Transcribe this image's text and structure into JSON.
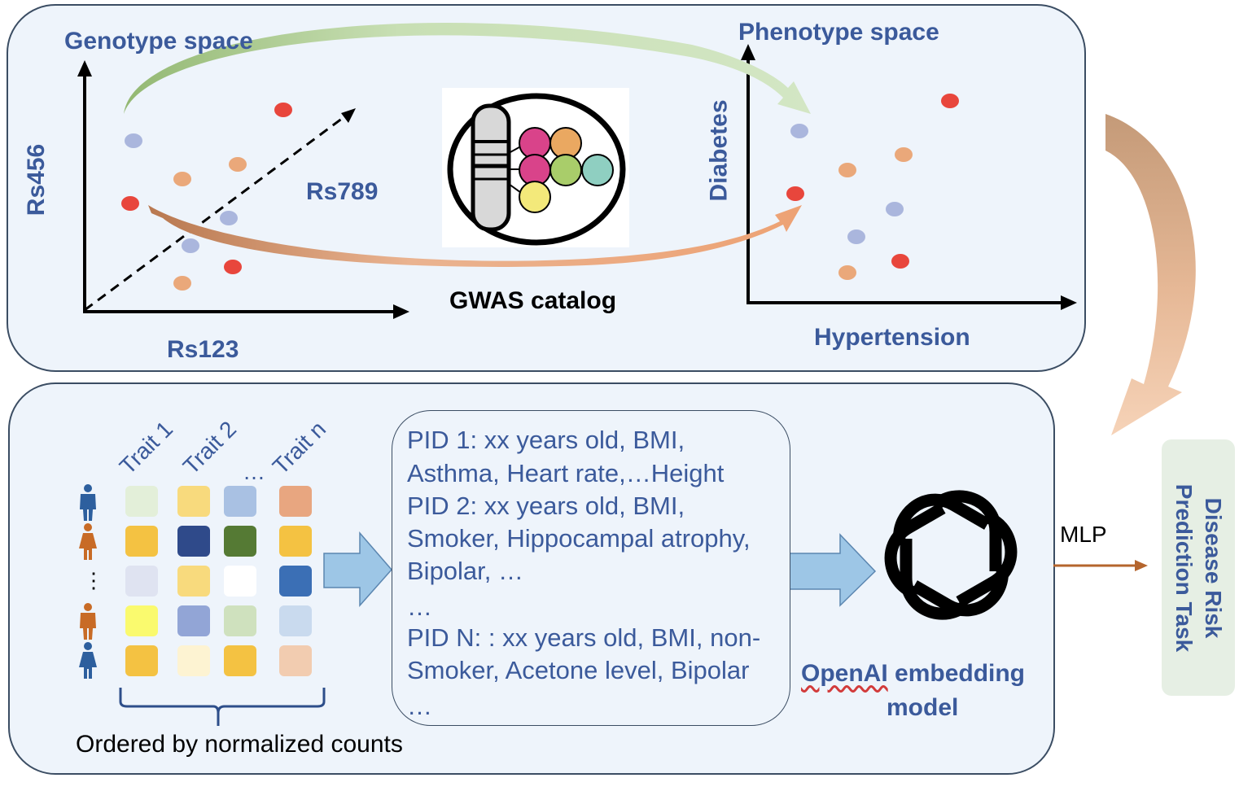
{
  "top": {
    "genotype_title": "Genotype space",
    "phenotype_title": "Phenotype space",
    "genotype_y_label": "Rs456",
    "genotype_x_label": "Rs123",
    "genotype_diag_label": "Rs789",
    "phenotype_y_label": "Diabetes",
    "phenotype_x_label": "Hypertension",
    "gwas_label": "GWAS catalog"
  },
  "bottom": {
    "traits": [
      "Trait 1",
      "Trait 2",
      "…",
      "Trait n"
    ],
    "people_ellipsis": "⋮",
    "ordered_label": "Ordered by normalized counts",
    "pid_lines": [
      "PID 1: xx years old, BMI,",
      "Asthma, Heart rate,…Height",
      "PID 2: xx years old, BMI,",
      "Smoker, Hippocampal atrophy,",
      "Bipolar, …",
      "…",
      "PID N: : xx years old, BMI, non-",
      "Smoker,  Acetone level, Bipolar",
      "…"
    ],
    "embedding_label_1": "OpenAI",
    "embedding_label_2": " embedding",
    "embedding_label_3": "model",
    "mlp_label": "MLP",
    "task_line_1": "Disease Risk",
    "task_line_2": "Prediction Task"
  },
  "colors": {
    "label_blue": "#3b5a9b",
    "dot_red": "#e8463c",
    "dot_orange": "#eaa87a",
    "dot_blue": "#aab6dd",
    "arrow_green": "#c6ddb0",
    "arrow_orange": "#e9a97a",
    "arrow_brown": "#c6926b",
    "block_arrow": "#9dc6e6"
  },
  "trait_matrix_colors": [
    [
      "#e3efd9",
      "#f8da7d",
      "#a9c1e3",
      "#e8a680"
    ],
    [
      "#f4c242",
      "#2f4a8a",
      "#557a34",
      "#f4c242"
    ],
    [
      "#dfe3f1",
      "#f8da7d",
      "#ffffff",
      "#3b6fb5"
    ],
    [
      "#fafa6e",
      "#92a5d6",
      "#cfe1be",
      "#c9daee"
    ],
    [
      "#f4c242",
      "#fdf3d2",
      "#f4c242",
      "#f2ccb0"
    ]
  ],
  "people_colors": [
    "#2d5f9e",
    "#c86b26",
    "#c86b26",
    "#2d5f9e"
  ]
}
